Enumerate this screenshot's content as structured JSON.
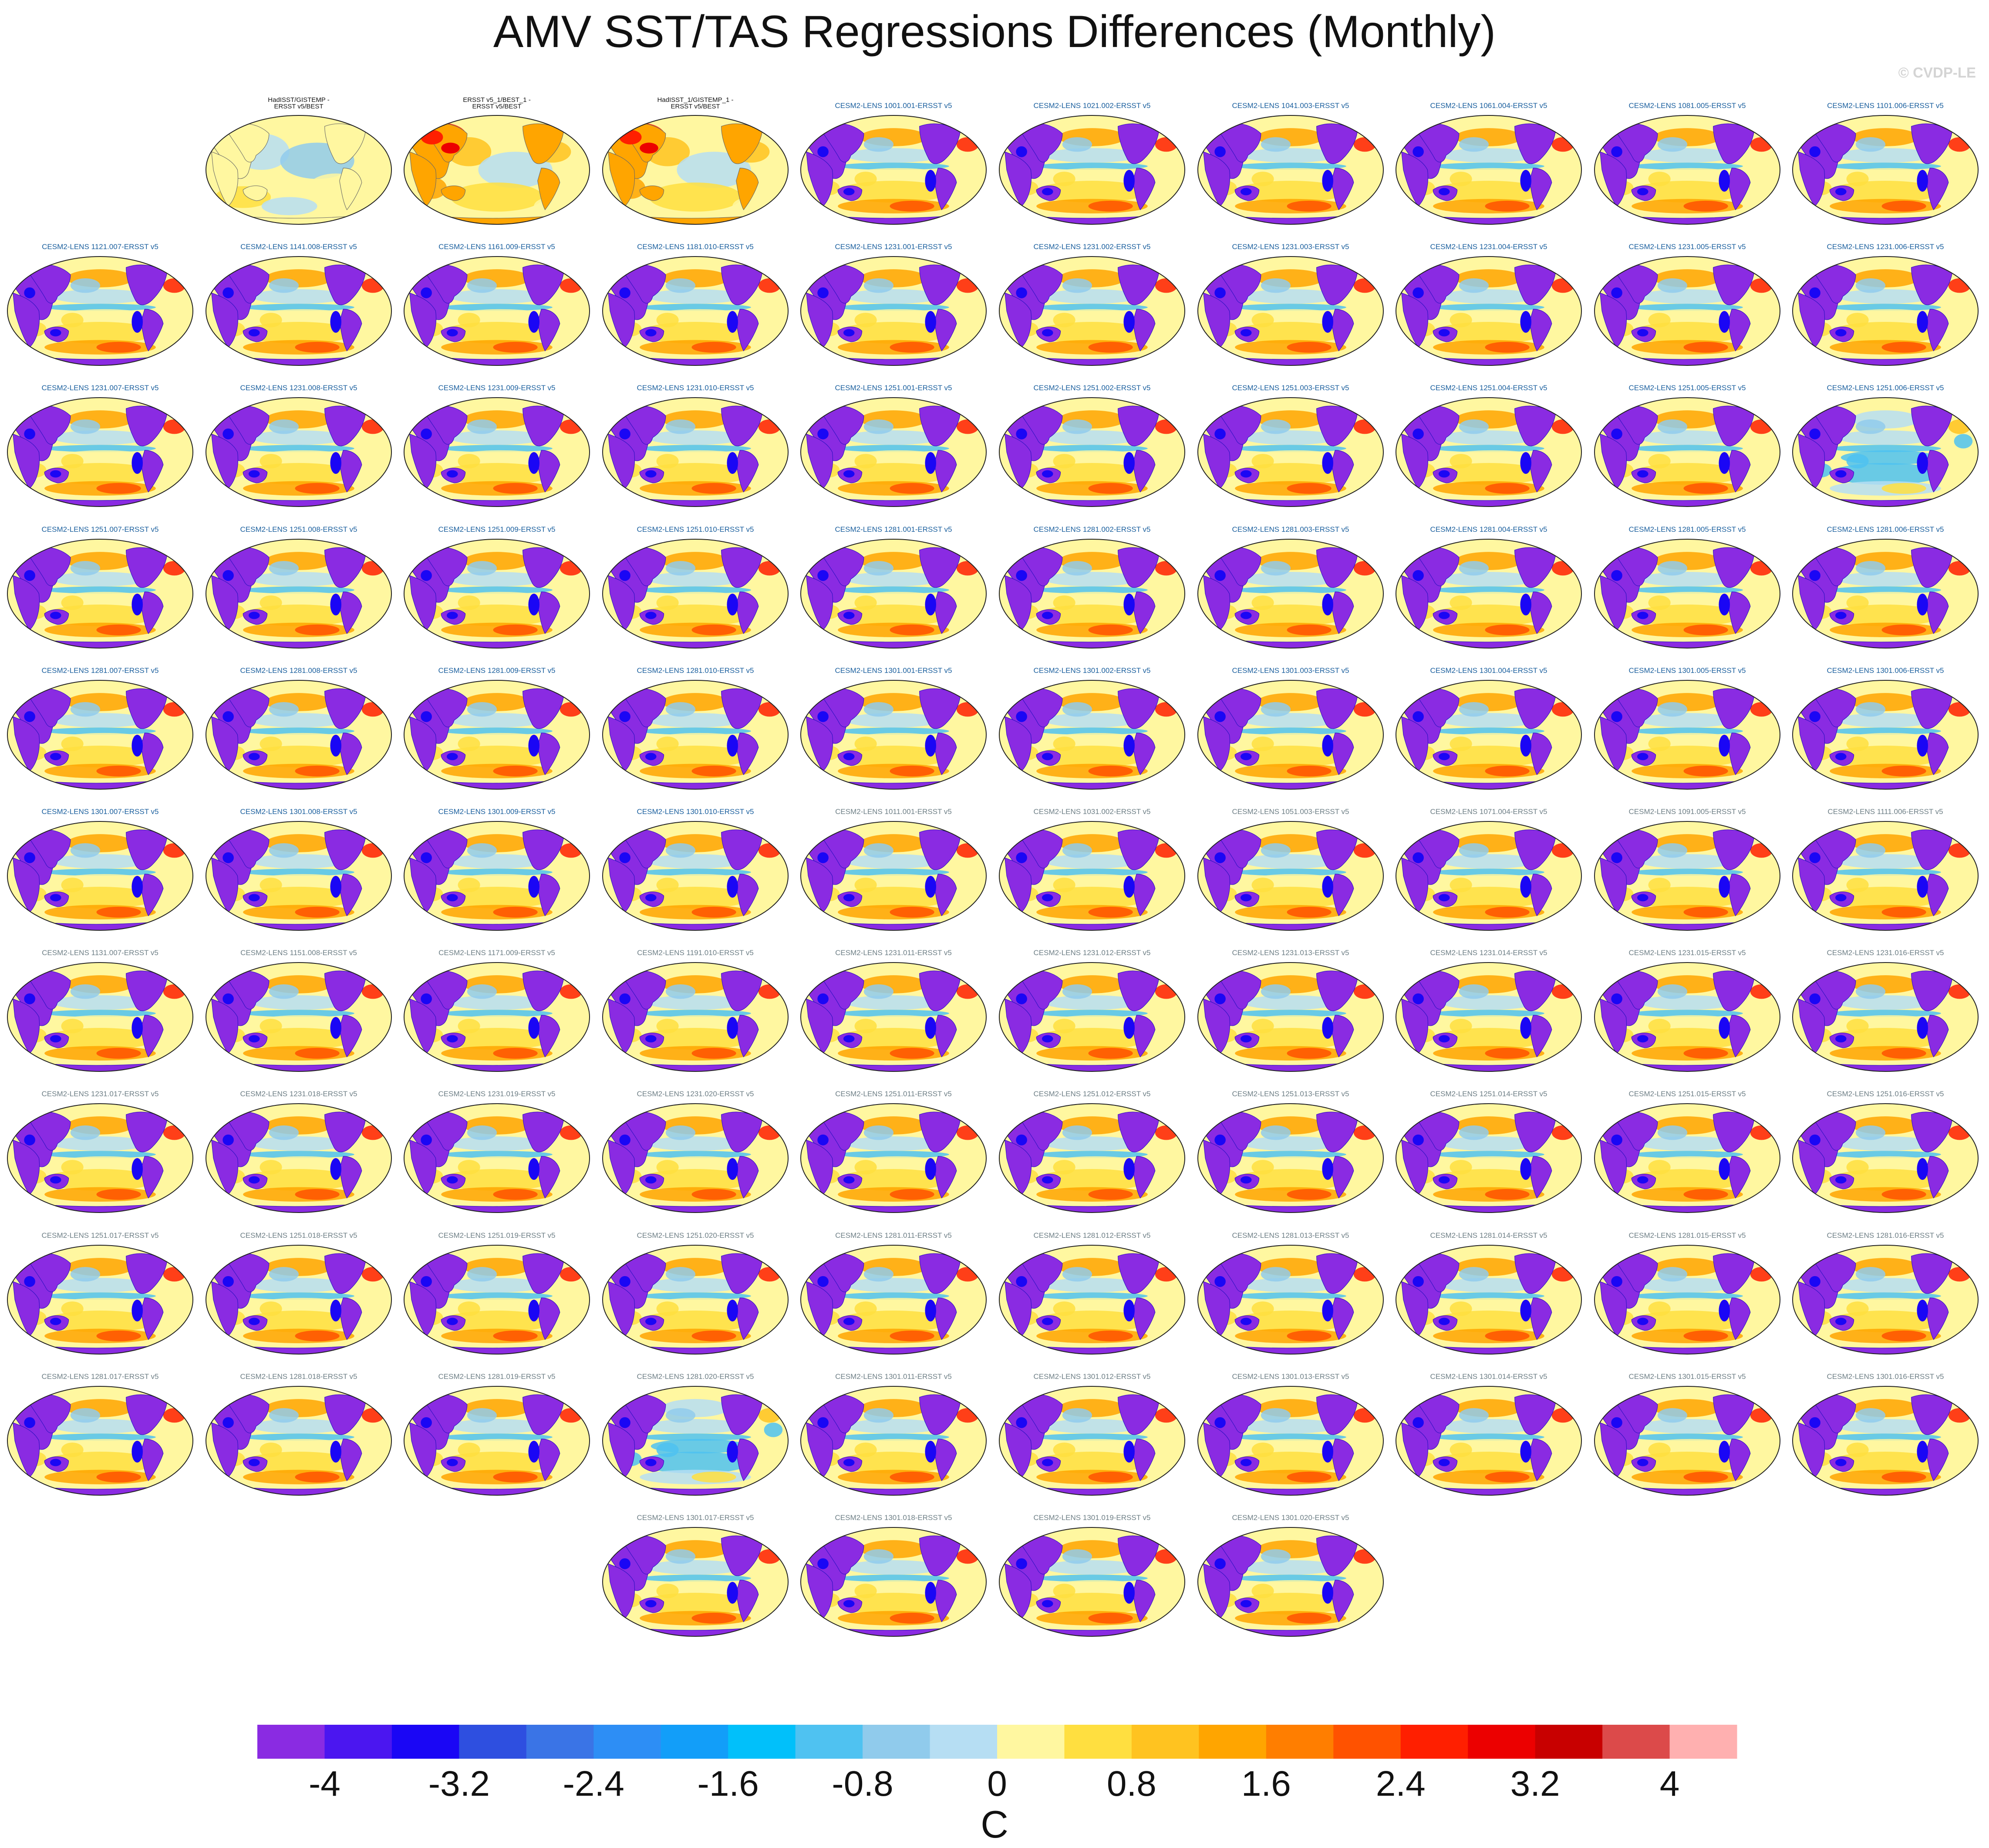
{
  "chart_data": {
    "type": "heatmap",
    "title": "AMV SST/TAS Regressions Differences (Monthly)",
    "credit": "© CVDP-LE",
    "projection": "robinson-global-map",
    "units": "C",
    "colorbar": {
      "levels": [
        -4,
        -3.6,
        -3.2,
        -2.8,
        -2.4,
        -2,
        -1.6,
        -1.2,
        -0.8,
        -0.4,
        0,
        0.4,
        0.8,
        1.2,
        1.6,
        2,
        2.4,
        2.8,
        3.2,
        3.6,
        4
      ],
      "tick_labels": [
        "-4",
        "-3.2",
        "-2.4",
        "-1.6",
        "-0.8",
        "0",
        "0.8",
        "1.6",
        "2.4",
        "3.2",
        "4"
      ],
      "colors": [
        "#8a2be2",
        "#4b16f0",
        "#1a06f5",
        "#2e4fe0",
        "#3a74e6",
        "#2d8ef5",
        "#129ef9",
        "#01c0fa",
        "#4fc2f1",
        "#90cbec",
        "#b6def3",
        "#fff7a0",
        "#ffdf40",
        "#ffc320",
        "#ffa500",
        "#ff7e00",
        "#ff5200",
        "#ff1f00",
        "#ec0000",
        "#c80000",
        "#dc4a4a",
        "#ffb0b0"
      ]
    },
    "panels": [
      {
        "label": "HadISST/GISTEMP -\nERSST v5/BEST",
        "style": "obs-diff",
        "row": 0,
        "col": 1
      },
      {
        "label": "ERSST v5_1/BEST_1 -\nERSST v5/BEST",
        "style": "obs-warm",
        "row": 0,
        "col": 2
      },
      {
        "label": "HadISST_1/GISTEMP_1 -\nERSST v5/BEST",
        "style": "obs-warm",
        "row": 0,
        "col": 3
      },
      {
        "label": "CESM2-LENS 1001.001-ERSST v5",
        "style": "model",
        "row": 0,
        "col": 4
      },
      {
        "label": "CESM2-LENS 1021.002-ERSST v5",
        "style": "model",
        "row": 0,
        "col": 5
      },
      {
        "label": "CESM2-LENS 1041.003-ERSST v5",
        "style": "model",
        "row": 0,
        "col": 6
      },
      {
        "label": "CESM2-LENS 1061.004-ERSST v5",
        "style": "model",
        "row": 0,
        "col": 7
      },
      {
        "label": "CESM2-LENS 1081.005-ERSST v5",
        "style": "model",
        "row": 0,
        "col": 8
      },
      {
        "label": "CESM2-LENS 1101.006-ERSST v5",
        "style": "model",
        "row": 0,
        "col": 9
      },
      {
        "label": "CESM2-LENS 1121.007-ERSST v5",
        "style": "model",
        "row": 1,
        "col": 0
      },
      {
        "label": "CESM2-LENS 1141.008-ERSST v5",
        "style": "model",
        "row": 1,
        "col": 1
      },
      {
        "label": "CESM2-LENS 1161.009-ERSST v5",
        "style": "model",
        "row": 1,
        "col": 2
      },
      {
        "label": "CESM2-LENS 1181.010-ERSST v5",
        "style": "model",
        "row": 1,
        "col": 3
      },
      {
        "label": "CESM2-LENS 1231.001-ERSST v5",
        "style": "model",
        "row": 1,
        "col": 4
      },
      {
        "label": "CESM2-LENS 1231.002-ERSST v5",
        "style": "model",
        "row": 1,
        "col": 5
      },
      {
        "label": "CESM2-LENS 1231.003-ERSST v5",
        "style": "model",
        "row": 1,
        "col": 6
      },
      {
        "label": "CESM2-LENS 1231.004-ERSST v5",
        "style": "model",
        "row": 1,
        "col": 7
      },
      {
        "label": "CESM2-LENS 1231.005-ERSST v5",
        "style": "model",
        "row": 1,
        "col": 8
      },
      {
        "label": "CESM2-LENS 1231.006-ERSST v5",
        "style": "model",
        "row": 1,
        "col": 9
      },
      {
        "label": "CESM2-LENS 1231.007-ERSST v5",
        "style": "model",
        "row": 2,
        "col": 0
      },
      {
        "label": "CESM2-LENS 1231.008-ERSST v5",
        "style": "model",
        "row": 2,
        "col": 1
      },
      {
        "label": "CESM2-LENS 1231.009-ERSST v5",
        "style": "model",
        "row": 2,
        "col": 2
      },
      {
        "label": "CESM2-LENS 1231.010-ERSST v5",
        "style": "model",
        "row": 2,
        "col": 3
      },
      {
        "label": "CESM2-LENS 1251.001-ERSST v5",
        "style": "model",
        "row": 2,
        "col": 4
      },
      {
        "label": "CESM2-LENS 1251.002-ERSST v5",
        "style": "model",
        "row": 2,
        "col": 5
      },
      {
        "label": "CESM2-LENS 1251.003-ERSST v5",
        "style": "model",
        "row": 2,
        "col": 6
      },
      {
        "label": "CESM2-LENS 1251.004-ERSST v5",
        "style": "model",
        "row": 2,
        "col": 7
      },
      {
        "label": "CESM2-LENS 1251.005-ERSST v5",
        "style": "model",
        "row": 2,
        "col": 8
      },
      {
        "label": "CESM2-LENS 1251.006-ERSST v5",
        "style": "model-cool",
        "row": 2,
        "col": 9
      },
      {
        "label": "CESM2-LENS 1251.007-ERSST v5",
        "style": "model",
        "row": 3,
        "col": 0
      },
      {
        "label": "CESM2-LENS 1251.008-ERSST v5",
        "style": "model",
        "row": 3,
        "col": 1
      },
      {
        "label": "CESM2-LENS 1251.009-ERSST v5",
        "style": "model",
        "row": 3,
        "col": 2
      },
      {
        "label": "CESM2-LENS 1251.010-ERSST v5",
        "style": "model",
        "row": 3,
        "col": 3
      },
      {
        "label": "CESM2-LENS 1281.001-ERSST v5",
        "style": "model",
        "row": 3,
        "col": 4
      },
      {
        "label": "CESM2-LENS 1281.002-ERSST v5",
        "style": "model",
        "row": 3,
        "col": 5
      },
      {
        "label": "CESM2-LENS 1281.003-ERSST v5",
        "style": "model",
        "row": 3,
        "col": 6
      },
      {
        "label": "CESM2-LENS 1281.004-ERSST v5",
        "style": "model",
        "row": 3,
        "col": 7
      },
      {
        "label": "CESM2-LENS 1281.005-ERSST v5",
        "style": "model",
        "row": 3,
        "col": 8
      },
      {
        "label": "CESM2-LENS 1281.006-ERSST v5",
        "style": "model",
        "row": 3,
        "col": 9
      },
      {
        "label": "CESM2-LENS 1281.007-ERSST v5",
        "style": "model",
        "row": 4,
        "col": 0
      },
      {
        "label": "CESM2-LENS 1281.008-ERSST v5",
        "style": "model",
        "row": 4,
        "col": 1
      },
      {
        "label": "CESM2-LENS 1281.009-ERSST v5",
        "style": "model",
        "row": 4,
        "col": 2
      },
      {
        "label": "CESM2-LENS 1281.010-ERSST v5",
        "style": "model",
        "row": 4,
        "col": 3
      },
      {
        "label": "CESM2-LENS 1301.001-ERSST v5",
        "style": "model",
        "row": 4,
        "col": 4
      },
      {
        "label": "CESM2-LENS 1301.002-ERSST v5",
        "style": "model",
        "row": 4,
        "col": 5
      },
      {
        "label": "CESM2-LENS 1301.003-ERSST v5",
        "style": "model",
        "row": 4,
        "col": 6
      },
      {
        "label": "CESM2-LENS 1301.004-ERSST v5",
        "style": "model",
        "row": 4,
        "col": 7
      },
      {
        "label": "CESM2-LENS 1301.005-ERSST v5",
        "style": "model",
        "row": 4,
        "col": 8
      },
      {
        "label": "CESM2-LENS 1301.006-ERSST v5",
        "style": "model",
        "row": 4,
        "col": 9
      },
      {
        "label": "CESM2-LENS 1301.007-ERSST v5",
        "style": "model",
        "row": 5,
        "col": 0
      },
      {
        "label": "CESM2-LENS 1301.008-ERSST v5",
        "style": "model",
        "row": 5,
        "col": 1
      },
      {
        "label": "CESM2-LENS 1301.009-ERSST v5",
        "style": "model",
        "row": 5,
        "col": 2
      },
      {
        "label": "CESM2-LENS 1301.010-ERSST v5",
        "style": "model",
        "row": 5,
        "col": 3
      },
      {
        "label": "CESM2-LENS 1011.001-ERSST v5",
        "style": "model2",
        "row": 5,
        "col": 4
      },
      {
        "label": "CESM2-LENS 1031.002-ERSST v5",
        "style": "model2",
        "row": 5,
        "col": 5
      },
      {
        "label": "CESM2-LENS 1051.003-ERSST v5",
        "style": "model2",
        "row": 5,
        "col": 6
      },
      {
        "label": "CESM2-LENS 1071.004-ERSST v5",
        "style": "model2",
        "row": 5,
        "col": 7
      },
      {
        "label": "CESM2-LENS 1091.005-ERSST v5",
        "style": "model2",
        "row": 5,
        "col": 8
      },
      {
        "label": "CESM2-LENS 1111.006-ERSST v5",
        "style": "model2",
        "row": 5,
        "col": 9
      },
      {
        "label": "CESM2-LENS 1131.007-ERSST v5",
        "style": "model2",
        "row": 6,
        "col": 0
      },
      {
        "label": "CESM2-LENS 1151.008-ERSST v5",
        "style": "model2",
        "row": 6,
        "col": 1
      },
      {
        "label": "CESM2-LENS 1171.009-ERSST v5",
        "style": "model2",
        "row": 6,
        "col": 2
      },
      {
        "label": "CESM2-LENS 1191.010-ERSST v5",
        "style": "model2",
        "row": 6,
        "col": 3
      },
      {
        "label": "CESM2-LENS 1231.011-ERSST v5",
        "style": "model2",
        "row": 6,
        "col": 4
      },
      {
        "label": "CESM2-LENS 1231.012-ERSST v5",
        "style": "model2",
        "row": 6,
        "col": 5
      },
      {
        "label": "CESM2-LENS 1231.013-ERSST v5",
        "style": "model2",
        "row": 6,
        "col": 6
      },
      {
        "label": "CESM2-LENS 1231.014-ERSST v5",
        "style": "model2",
        "row": 6,
        "col": 7
      },
      {
        "label": "CESM2-LENS 1231.015-ERSST v5",
        "style": "model2",
        "row": 6,
        "col": 8
      },
      {
        "label": "CESM2-LENS 1231.016-ERSST v5",
        "style": "model2",
        "row": 6,
        "col": 9
      },
      {
        "label": "CESM2-LENS 1231.017-ERSST v5",
        "style": "model2",
        "row": 7,
        "col": 0
      },
      {
        "label": "CESM2-LENS 1231.018-ERSST v5",
        "style": "model2",
        "row": 7,
        "col": 1
      },
      {
        "label": "CESM2-LENS 1231.019-ERSST v5",
        "style": "model2",
        "row": 7,
        "col": 2
      },
      {
        "label": "CESM2-LENS 1231.020-ERSST v5",
        "style": "model2",
        "row": 7,
        "col": 3
      },
      {
        "label": "CESM2-LENS 1251.011-ERSST v5",
        "style": "model2",
        "row": 7,
        "col": 4
      },
      {
        "label": "CESM2-LENS 1251.012-ERSST v5",
        "style": "model2",
        "row": 7,
        "col": 5
      },
      {
        "label": "CESM2-LENS 1251.013-ERSST v5",
        "style": "model2",
        "row": 7,
        "col": 6
      },
      {
        "label": "CESM2-LENS 1251.014-ERSST v5",
        "style": "model2",
        "row": 7,
        "col": 7
      },
      {
        "label": "CESM2-LENS 1251.015-ERSST v5",
        "style": "model2",
        "row": 7,
        "col": 8
      },
      {
        "label": "CESM2-LENS 1251.016-ERSST v5",
        "style": "model2",
        "row": 7,
        "col": 9
      },
      {
        "label": "CESM2-LENS 1251.017-ERSST v5",
        "style": "model2",
        "row": 8,
        "col": 0
      },
      {
        "label": "CESM2-LENS 1251.018-ERSST v5",
        "style": "model2",
        "row": 8,
        "col": 1
      },
      {
        "label": "CESM2-LENS 1251.019-ERSST v5",
        "style": "model2",
        "row": 8,
        "col": 2
      },
      {
        "label": "CESM2-LENS 1251.020-ERSST v5",
        "style": "model2",
        "row": 8,
        "col": 3
      },
      {
        "label": "CESM2-LENS 1281.011-ERSST v5",
        "style": "model2",
        "row": 8,
        "col": 4
      },
      {
        "label": "CESM2-LENS 1281.012-ERSST v5",
        "style": "model2",
        "row": 8,
        "col": 5
      },
      {
        "label": "CESM2-LENS 1281.013-ERSST v5",
        "style": "model2",
        "row": 8,
        "col": 6
      },
      {
        "label": "CESM2-LENS 1281.014-ERSST v5",
        "style": "model2",
        "row": 8,
        "col": 7
      },
      {
        "label": "CESM2-LENS 1281.015-ERSST v5",
        "style": "model2",
        "row": 8,
        "col": 8
      },
      {
        "label": "CESM2-LENS 1281.016-ERSST v5",
        "style": "model2",
        "row": 8,
        "col": 9
      },
      {
        "label": "CESM2-LENS 1281.017-ERSST v5",
        "style": "model2",
        "row": 9,
        "col": 0
      },
      {
        "label": "CESM2-LENS 1281.018-ERSST v5",
        "style": "model2",
        "row": 9,
        "col": 1
      },
      {
        "label": "CESM2-LENS 1281.019-ERSST v5",
        "style": "model2",
        "row": 9,
        "col": 2
      },
      {
        "label": "CESM2-LENS 1281.020-ERSST v5",
        "style": "model2-cool",
        "row": 9,
        "col": 3
      },
      {
        "label": "CESM2-LENS 1301.011-ERSST v5",
        "style": "model2",
        "row": 9,
        "col": 4
      },
      {
        "label": "CESM2-LENS 1301.012-ERSST v5",
        "style": "model2",
        "row": 9,
        "col": 5
      },
      {
        "label": "CESM2-LENS 1301.013-ERSST v5",
        "style": "model2",
        "row": 9,
        "col": 6
      },
      {
        "label": "CESM2-LENS 1301.014-ERSST v5",
        "style": "model2",
        "row": 9,
        "col": 7
      },
      {
        "label": "CESM2-LENS 1301.015-ERSST v5",
        "style": "model2",
        "row": 9,
        "col": 8
      },
      {
        "label": "CESM2-LENS 1301.016-ERSST v5",
        "style": "model2",
        "row": 9,
        "col": 9
      },
      {
        "label": "CESM2-LENS 1301.017-ERSST v5",
        "style": "model2",
        "row": 10,
        "col": 3
      },
      {
        "label": "CESM2-LENS 1301.018-ERSST v5",
        "style": "model2",
        "row": 10,
        "col": 4
      },
      {
        "label": "CESM2-LENS 1301.019-ERSST v5",
        "style": "model2",
        "row": 10,
        "col": 5
      },
      {
        "label": "CESM2-LENS 1301.020-ERSST v5",
        "style": "model2",
        "row": 10,
        "col": 6
      }
    ]
  },
  "label_colors": {
    "obs": "#111111",
    "model": "#1a5f9e",
    "model2": "#6e7f86"
  }
}
